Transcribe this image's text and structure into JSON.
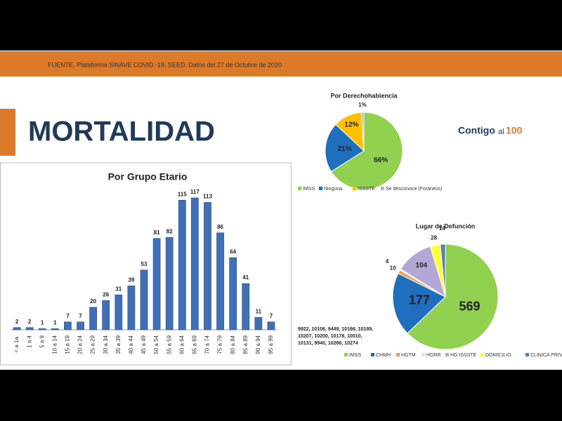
{
  "header": {
    "source": "FUENTE. Plataforma SINAVE COVID -19, SEED. Datos del 27 de Octubre de 2020"
  },
  "title": "MORTALIDAD",
  "logo": {
    "word": "Contigo",
    "small": "al",
    "number": "100"
  },
  "chart_data": [
    {
      "type": "bar",
      "title": "Por Grupo Etario",
      "categories": [
        "< a 1a.",
        "1 a 4",
        "5 a 9",
        "10 a 14",
        "15 a 19",
        "20 a 24",
        "25 a 29",
        "30 a 34",
        "35 a 39",
        "40 a 44",
        "45 a 49",
        "50 a 54",
        "55 a 59",
        "60 a 64",
        "65 a 69",
        "70 a 74",
        "75 a 79",
        "80 a 84",
        "85 a 89",
        "90 a 94",
        "95 a 99"
      ],
      "values": [
        2,
        2,
        1,
        1,
        7,
        7,
        20,
        26,
        31,
        39,
        53,
        81,
        82,
        115,
        117,
        113,
        86,
        64,
        41,
        11,
        7
      ],
      "color": "#3f6fb8"
    },
    {
      "type": "pie",
      "title": "Por Derechohabiencia",
      "categories": [
        "IMSS",
        "Ninguna",
        "ISSSTE",
        "Se desconoce (Foráneos)"
      ],
      "values": [
        66,
        21,
        12,
        1
      ],
      "value_labels": [
        "66%",
        "21%",
        "12%",
        "1%"
      ],
      "colors": [
        "#92d050",
        "#1f6fbf",
        "#ffc000",
        "#a9b8c8"
      ]
    },
    {
      "type": "pie",
      "title": "Lugar de Defunción",
      "categories": [
        "IMSS",
        "CHMH",
        "HGTM",
        "HGRR",
        "HG ISSSTE",
        "DOMICILIO",
        "CLINICA PRIVADA"
      ],
      "values": [
        569,
        177,
        10,
        4,
        104,
        28,
        14
      ],
      "colors": [
        "#92d050",
        "#1f6fbf",
        "#f79646",
        "#e4e4e4",
        "#b4a7d6",
        "#ffff33",
        "#4f81bd"
      ],
      "annotations": [
        "9922, 10106, 9449, 10166, 10189,",
        "10207, 10200, 10178, 10010,",
        "10131, 9940, 10266, 10274"
      ]
    }
  ]
}
